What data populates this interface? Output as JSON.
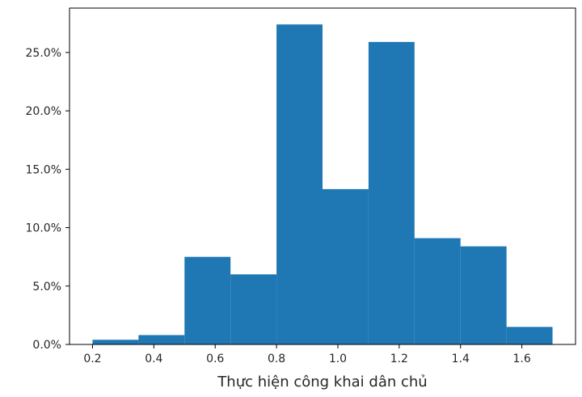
{
  "chart_data": {
    "type": "histogram",
    "title": "",
    "xlabel": "Thực hiện công khai dân chủ",
    "ylabel": "",
    "x_format": "decimal",
    "y_format": "percent",
    "bins": [
      {
        "x0": 0.2,
        "x1": 0.35,
        "value": 0.4
      },
      {
        "x0": 0.35,
        "x1": 0.5,
        "value": 0.8
      },
      {
        "x0": 0.5,
        "x1": 0.65,
        "value": 7.5
      },
      {
        "x0": 0.65,
        "x1": 0.8,
        "value": 6.0
      },
      {
        "x0": 0.8,
        "x1": 0.95,
        "value": 27.4
      },
      {
        "x0": 0.95,
        "x1": 1.1,
        "value": 13.3
      },
      {
        "x0": 1.1,
        "x1": 1.25,
        "value": 25.9
      },
      {
        "x0": 1.25,
        "x1": 1.4,
        "value": 9.1
      },
      {
        "x0": 1.4,
        "x1": 1.55,
        "value": 8.4
      },
      {
        "x0": 1.55,
        "x1": 1.7,
        "value": 1.5
      }
    ],
    "xlim": [
      0.125,
      1.775
    ],
    "ylim": [
      0,
      28.8
    ],
    "x_ticks": [
      0.2,
      0.4,
      0.6,
      0.8,
      1.0,
      1.2,
      1.4,
      1.6
    ],
    "x_tick_labels": [
      "0.2",
      "0.4",
      "0.6",
      "0.8",
      "1.0",
      "1.2",
      "1.4",
      "1.6"
    ],
    "y_ticks": [
      0,
      5,
      10,
      15,
      20,
      25
    ],
    "y_tick_labels": [
      "0.0%",
      "5.0%",
      "10.0%",
      "15.0%",
      "20.0%",
      "25.0%"
    ],
    "grid": false,
    "legend": "none",
    "bar_color": "#1f77b4"
  }
}
